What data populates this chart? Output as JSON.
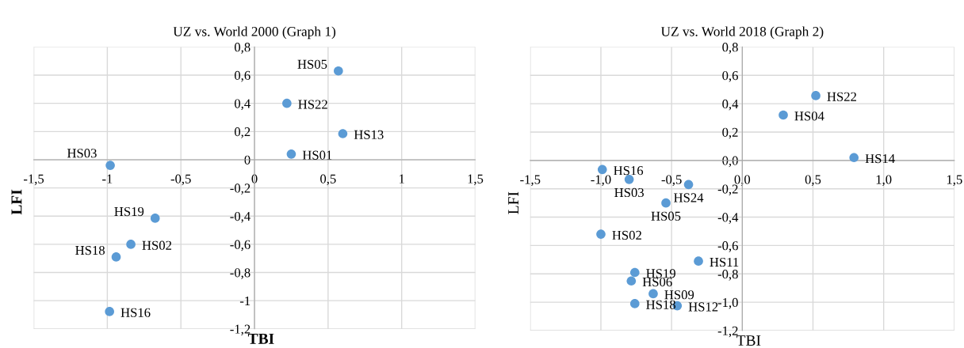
{
  "chart_data": [
    {
      "type": "scatter",
      "title": "UZ vs. World 2000 (Graph 1)",
      "xlabel": "TBI",
      "ylabel": "LFI",
      "color": "#5b9bd5",
      "marker": "circle",
      "grid": true,
      "x": [
        0.57,
        0.22,
        0.6,
        0.25,
        -0.98,
        -0.675,
        -0.84,
        -0.94,
        -0.985
      ],
      "values": [
        0.63,
        0.4,
        0.185,
        0.04,
        -0.04,
        -0.415,
        -0.6,
        -0.69,
        -1.077
      ],
      "xlim": [
        -1.5,
        1.5
      ],
      "ylim": [
        -1.2,
        0.8
      ],
      "xticks": [
        {
          "value": -1.5,
          "label": "-1,5"
        },
        {
          "value": -1,
          "label": "-1"
        },
        {
          "value": -0.5,
          "label": "-0,5"
        },
        {
          "value": 0,
          "label": "0"
        },
        {
          "value": 0.5,
          "label": "0,5"
        },
        {
          "value": 1,
          "label": "1"
        },
        {
          "value": 1.5,
          "label": "1,5"
        }
      ],
      "yticks": [
        {
          "value": -1.2,
          "label": "-1,2"
        },
        {
          "value": -1,
          "label": "-1"
        },
        {
          "value": -0.8,
          "label": "-0,8"
        },
        {
          "value": -0.6,
          "label": "-0,6"
        },
        {
          "value": -0.4,
          "label": "-0,4"
        },
        {
          "value": -0.2,
          "label": "-0,2"
        },
        {
          "value": 0,
          "label": "0"
        },
        {
          "value": 0.2,
          "label": "0,2"
        },
        {
          "value": 0.4,
          "label": "0,4"
        },
        {
          "value": 0.6,
          "label": "0,6"
        },
        {
          "value": 0.8,
          "label": "0,8"
        }
      ],
      "annotations": [
        {
          "text": "HS05",
          "x": 0.57,
          "y": 0.63
        },
        {
          "text": "HS22",
          "x": 0.22,
          "y": 0.4
        },
        {
          "text": "HS13",
          "x": 0.6,
          "y": 0.185
        },
        {
          "text": "HS01",
          "x": 0.25,
          "y": 0.04
        },
        {
          "text": "HS03",
          "x": -0.98,
          "y": -0.04
        },
        {
          "text": "HS19",
          "x": -0.675,
          "y": -0.415
        },
        {
          "text": "HS02",
          "x": -0.84,
          "y": -0.6
        },
        {
          "text": "HS18",
          "x": -0.94,
          "y": -0.69
        },
        {
          "text": "HS16",
          "x": -0.985,
          "y": -1.077
        }
      ]
    },
    {
      "type": "scatter",
      "title": "UZ vs. World 2018 (Graph 2)",
      "xlabel": "TBI",
      "ylabel": "LFI",
      "color": "#5b9bd5",
      "marker": "circle",
      "grid": true,
      "x": [
        0.52,
        0.29,
        0.79,
        -0.99,
        -0.8,
        -0.38,
        -0.54,
        -1.0,
        -0.31,
        -0.76,
        -0.785,
        -0.63,
        -0.76,
        -0.46
      ],
      "values": [
        0.457,
        0.32,
        0.02,
        -0.064,
        -0.134,
        -0.17,
        -0.3,
        -0.52,
        -0.71,
        -0.79,
        -0.85,
        -0.94,
        -1.01,
        -1.025
      ],
      "xlim": [
        -1.5,
        1.5
      ],
      "ylim": [
        -1.2,
        0.8
      ],
      "xticks": [
        {
          "value": -1.5,
          "label": "-1,5"
        },
        {
          "value": -1,
          "label": "-1,0"
        },
        {
          "value": -0.5,
          "label": "-0,5"
        },
        {
          "value": 0,
          "label": "0,0"
        },
        {
          "value": 0.5,
          "label": "0,5"
        },
        {
          "value": 1,
          "label": "1,0"
        },
        {
          "value": 1.5,
          "label": "1,5"
        }
      ],
      "yticks": [
        {
          "value": -1.2,
          "label": "-1,2"
        },
        {
          "value": -1,
          "label": "-1,0"
        },
        {
          "value": -0.8,
          "label": "-0,8"
        },
        {
          "value": -0.6,
          "label": "-0,6"
        },
        {
          "value": -0.4,
          "label": "-0,4"
        },
        {
          "value": -0.2,
          "label": "-0,2"
        },
        {
          "value": 0,
          "label": "0,0"
        },
        {
          "value": 0.2,
          "label": "0,2"
        },
        {
          "value": 0.4,
          "label": "0,4"
        },
        {
          "value": 0.6,
          "label": "0,6"
        },
        {
          "value": 0.8,
          "label": "0,8"
        }
      ],
      "annotations": [
        {
          "text": "HS22",
          "x": 0.52,
          "y": 0.457
        },
        {
          "text": "HS04",
          "x": 0.29,
          "y": 0.32
        },
        {
          "text": "HS14",
          "x": 0.79,
          "y": 0.02
        },
        {
          "text": "HS16",
          "x": -0.99,
          "y": -0.064
        },
        {
          "text": "HS03",
          "x": -0.8,
          "y": -0.134
        },
        {
          "text": "HS24",
          "x": -0.38,
          "y": -0.17
        },
        {
          "text": "HS05",
          "x": -0.54,
          "y": -0.3
        },
        {
          "text": "HS02",
          "x": -1.0,
          "y": -0.52
        },
        {
          "text": "HS11",
          "x": -0.31,
          "y": -0.71
        },
        {
          "text": "HS19",
          "x": -0.76,
          "y": -0.79
        },
        {
          "text": "HS06",
          "x": -0.785,
          "y": -0.85
        },
        {
          "text": "HS09",
          "x": -0.63,
          "y": -0.94
        },
        {
          "text": "HS18",
          "x": -0.76,
          "y": -1.01
        },
        {
          "text": "HS12",
          "x": -0.46,
          "y": -1.025
        }
      ]
    }
  ]
}
